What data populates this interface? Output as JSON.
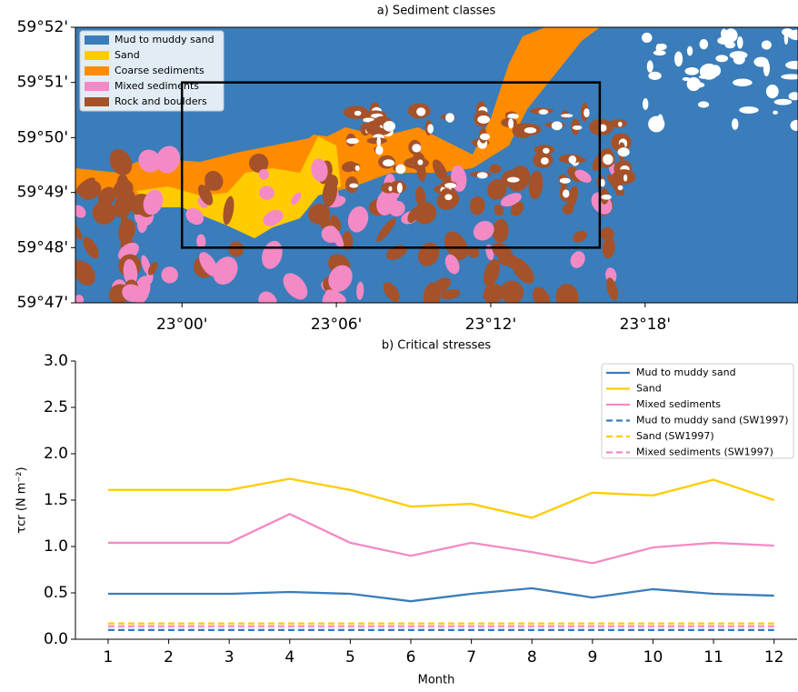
{
  "chart_data": [
    {
      "type": "map",
      "title": "a) Sediment classes",
      "xlim": [
        22.931,
        23.399
      ],
      "ylim": [
        59.7833,
        59.8667
      ],
      "xticks": [
        {
          "value": 23.0,
          "label": "23°00'"
        },
        {
          "value": 23.1,
          "label": "23°06'"
        },
        {
          "value": 23.2,
          "label": "23°12'"
        },
        {
          "value": 23.3,
          "label": "23°18'"
        }
      ],
      "yticks": [
        {
          "value": 59.7833,
          "label": "59°47'"
        },
        {
          "value": 59.8,
          "label": "59°48'"
        },
        {
          "value": 59.8167,
          "label": "59°49'"
        },
        {
          "value": 59.8333,
          "label": "59°50'"
        },
        {
          "value": 59.85,
          "label": "59°51'"
        },
        {
          "value": 59.8667,
          "label": "59°52'"
        }
      ],
      "classes": [
        {
          "name": "Mud to muddy sand",
          "color": "#3a7dba"
        },
        {
          "name": "Sand",
          "color": "#ffcc00"
        },
        {
          "name": "Coarse sediments",
          "color": "#ff8c00"
        },
        {
          "name": "Mixed sediments",
          "color": "#f38ac6"
        },
        {
          "name": "Rock and boulders",
          "color": "#a5522a"
        }
      ],
      "box": {
        "x": [
          23.0,
          23.2706
        ],
        "y": [
          59.8,
          59.85
        ]
      }
    },
    {
      "type": "line",
      "title": "b) Critical stresses",
      "xlabel": "Month",
      "ylabel": "τcr (N m⁻²)",
      "x": [
        1,
        2,
        3,
        4,
        5,
        6,
        7,
        8,
        9,
        10,
        11,
        12
      ],
      "xlim": [
        0.46,
        12.38
      ],
      "ylim": [
        0,
        3
      ],
      "xticks": [
        1,
        2,
        3,
        4,
        5,
        6,
        7,
        8,
        9,
        10,
        11,
        12
      ],
      "yticks": [
        {
          "value": 0,
          "label": "0.0"
        },
        {
          "value": 0.5,
          "label": "0.5"
        },
        {
          "value": 1,
          "label": "1.0"
        },
        {
          "value": 1.5,
          "label": "1.5"
        },
        {
          "value": 2,
          "label": "2.0"
        },
        {
          "value": 2.5,
          "label": "2.5"
        },
        {
          "value": 3,
          "label": "3.0"
        }
      ],
      "legend": "upper right",
      "series": [
        {
          "name": "Mud to muddy sand",
          "color": "#3a7dba",
          "style": "solid",
          "values": [
            0.49,
            0.49,
            0.49,
            0.51,
            0.49,
            0.41,
            0.49,
            0.55,
            0.45,
            0.54,
            0.49,
            0.47
          ]
        },
        {
          "name": "Sand",
          "color": "#ffcc00",
          "style": "solid",
          "values": [
            1.61,
            1.61,
            1.61,
            1.73,
            1.61,
            1.43,
            1.46,
            1.31,
            1.58,
            1.55,
            1.72,
            1.5
          ]
        },
        {
          "name": "Mixed sediments",
          "color": "#f38ac6",
          "style": "solid",
          "values": [
            1.04,
            1.04,
            1.04,
            1.35,
            1.04,
            0.9,
            1.04,
            0.94,
            0.82,
            0.99,
            1.04,
            1.01
          ]
        },
        {
          "name": "Mud to muddy sand (SW1997)",
          "color": "#3a7dba",
          "style": "dashed",
          "values": [
            0.1,
            0.1,
            0.1,
            0.1,
            0.1,
            0.1,
            0.1,
            0.1,
            0.1,
            0.1,
            0.1,
            0.1
          ]
        },
        {
          "name": "Sand (SW1997)",
          "color": "#ffcc00",
          "style": "dashed",
          "values": [
            0.17,
            0.17,
            0.17,
            0.17,
            0.17,
            0.17,
            0.17,
            0.17,
            0.17,
            0.17,
            0.17,
            0.17
          ]
        },
        {
          "name": "Mixed sediments (SW1997)",
          "color": "#f38ac6",
          "style": "dashed",
          "values": [
            0.14,
            0.14,
            0.14,
            0.14,
            0.14,
            0.14,
            0.14,
            0.14,
            0.14,
            0.14,
            0.14,
            0.14
          ]
        }
      ]
    }
  ]
}
